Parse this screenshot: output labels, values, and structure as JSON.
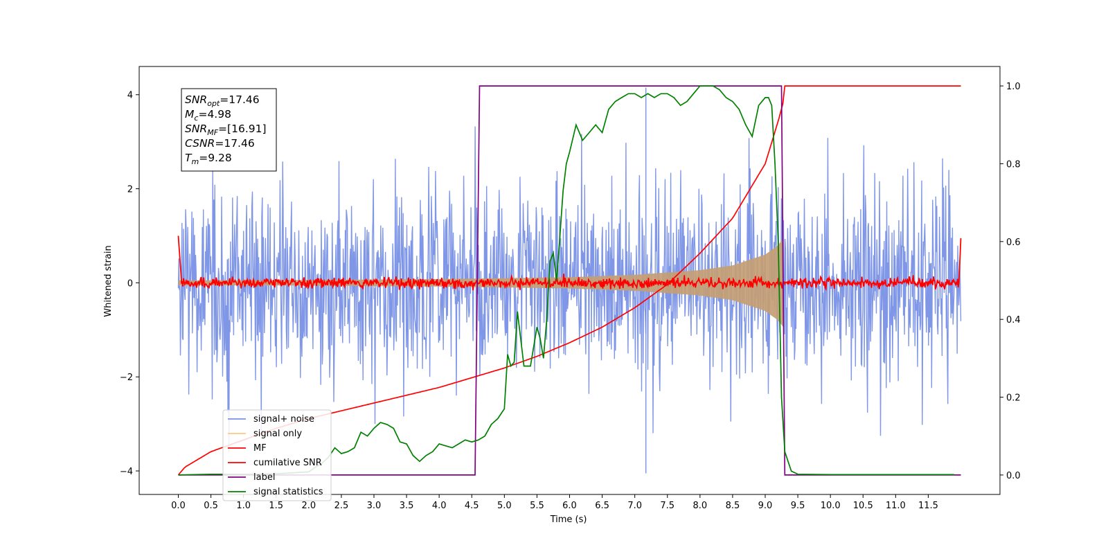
{
  "chart_data": {
    "type": "line",
    "xlabel": "Time (s)",
    "ylabel": "Whitened strain",
    "xlim": [
      -0.6,
      12.6
    ],
    "ylim": [
      -4.5,
      4.6
    ],
    "y2lim": [
      -0.05,
      1.05
    ],
    "x_ticks": [
      "0.0",
      "0.5",
      "1.0",
      "1.5",
      "2.0",
      "2.5",
      "3.0",
      "3.5",
      "4.0",
      "4.5",
      "5.0",
      "5.5",
      "6.0",
      "6.5",
      "7.0",
      "7.5",
      "8.0",
      "8.5",
      "9.0",
      "9.5",
      "10.0",
      "10.5",
      "11.0",
      "11.5"
    ],
    "y_ticks": [
      "4",
      "2",
      "0",
      "−2",
      "−4"
    ],
    "y2_ticks": [
      "1.0",
      "0.8",
      "0.6",
      "0.4",
      "0.2",
      "0.0"
    ],
    "grid": false,
    "legend_position": "lower-left",
    "annotation": {
      "snr_opt": "17.46",
      "mc": "4.98",
      "snr_mf": "[16.91]",
      "csnr": "17.46",
      "tm": "9.28"
    },
    "colors": {
      "signal_noise": "#7991e6",
      "signal_only": "#c49e74",
      "mf": "#ff0000",
      "cumulative_snr": "#ff0000",
      "label": "#800080",
      "signal_statistics": "#008000"
    },
    "series": [
      {
        "name": "signal+ noise",
        "axis": "left",
        "description_values": {
          "x_range": [
            0.0,
            12.0
          ],
          "typical_envelope": [
            -2.2,
            2.8
          ],
          "extremes": [
            -4.05,
            4.15
          ]
        }
      },
      {
        "name": "signal only",
        "axis": "left",
        "amplitude_envelope": {
          "t": [
            0.0,
            2.0,
            4.0,
            6.0,
            7.0,
            8.0,
            8.5,
            9.0,
            9.2,
            9.28
          ],
          "amp": [
            0.05,
            0.06,
            0.08,
            0.12,
            0.17,
            0.27,
            0.37,
            0.6,
            0.8,
            0.95
          ]
        }
      },
      {
        "name": "MF",
        "axis": "left",
        "description_values": {
          "baseline": 0.0,
          "noise_amplitude": 0.08,
          "edge_values": [
            1.0,
            0.95
          ]
        }
      },
      {
        "name": "cumilative SNR",
        "axis": "right",
        "x": [
          0.0,
          0.1,
          0.5,
          1.0,
          1.5,
          2.0,
          2.5,
          3.0,
          3.5,
          4.0,
          4.5,
          5.0,
          5.5,
          6.0,
          6.5,
          7.0,
          7.5,
          8.0,
          8.5,
          9.0,
          9.2,
          9.28,
          9.3,
          12.0
        ],
        "y": [
          0.0,
          0.02,
          0.06,
          0.09,
          0.12,
          0.145,
          0.165,
          0.185,
          0.205,
          0.225,
          0.25,
          0.275,
          0.305,
          0.34,
          0.38,
          0.43,
          0.49,
          0.57,
          0.66,
          0.8,
          0.91,
          0.96,
          1.0,
          1.0
        ]
      },
      {
        "name": "label",
        "axis": "right",
        "x": [
          0.0,
          4.55,
          4.62,
          9.25,
          9.3,
          12.0
        ],
        "y": [
          0.0,
          0.0,
          1.0,
          1.0,
          0.0,
          0.0
        ]
      },
      {
        "name": "signal statistics",
        "axis": "right",
        "x": [
          0.0,
          0.5,
          1.0,
          1.5,
          2.0,
          2.1,
          2.2,
          2.3,
          2.4,
          2.5,
          2.6,
          2.7,
          2.8,
          2.9,
          3.0,
          3.1,
          3.2,
          3.3,
          3.4,
          3.5,
          3.6,
          3.7,
          3.8,
          3.9,
          4.0,
          4.1,
          4.2,
          4.3,
          4.4,
          4.5,
          4.6,
          4.7,
          4.8,
          4.9,
          5.0,
          5.05,
          5.1,
          5.15,
          5.2,
          5.25,
          5.3,
          5.4,
          5.5,
          5.55,
          5.6,
          5.65,
          5.7,
          5.75,
          5.8,
          5.85,
          5.9,
          5.95,
          6.0,
          6.1,
          6.2,
          6.3,
          6.4,
          6.5,
          6.6,
          6.7,
          6.8,
          6.9,
          7.0,
          7.1,
          7.2,
          7.3,
          7.4,
          7.5,
          7.6,
          7.7,
          7.8,
          7.9,
          8.0,
          8.1,
          8.2,
          8.3,
          8.4,
          8.5,
          8.6,
          8.7,
          8.8,
          8.9,
          9.0,
          9.05,
          9.1,
          9.15,
          9.2,
          9.25,
          9.3,
          9.4,
          9.5,
          10.0,
          11.0,
          11.9
        ],
        "y": [
          0.0,
          0.002,
          0.002,
          0.003,
          0.008,
          0.02,
          0.03,
          0.045,
          0.07,
          0.055,
          0.06,
          0.07,
          0.11,
          0.1,
          0.12,
          0.135,
          0.13,
          0.12,
          0.085,
          0.08,
          0.05,
          0.035,
          0.05,
          0.06,
          0.08,
          0.075,
          0.07,
          0.08,
          0.09,
          0.085,
          0.09,
          0.1,
          0.13,
          0.145,
          0.17,
          0.31,
          0.28,
          0.29,
          0.42,
          0.35,
          0.28,
          0.28,
          0.38,
          0.35,
          0.3,
          0.4,
          0.55,
          0.57,
          0.5,
          0.61,
          0.73,
          0.8,
          0.83,
          0.9,
          0.86,
          0.88,
          0.9,
          0.88,
          0.94,
          0.96,
          0.97,
          0.98,
          0.98,
          0.97,
          0.98,
          0.97,
          0.98,
          0.98,
          0.97,
          0.95,
          0.96,
          0.98,
          1.0,
          1.0,
          1.0,
          0.99,
          0.97,
          0.96,
          0.94,
          0.9,
          0.87,
          0.95,
          0.97,
          0.97,
          0.95,
          0.8,
          0.6,
          0.2,
          0.06,
          0.01,
          0.002,
          0.001,
          0.001,
          0.001
        ]
      }
    ]
  }
}
